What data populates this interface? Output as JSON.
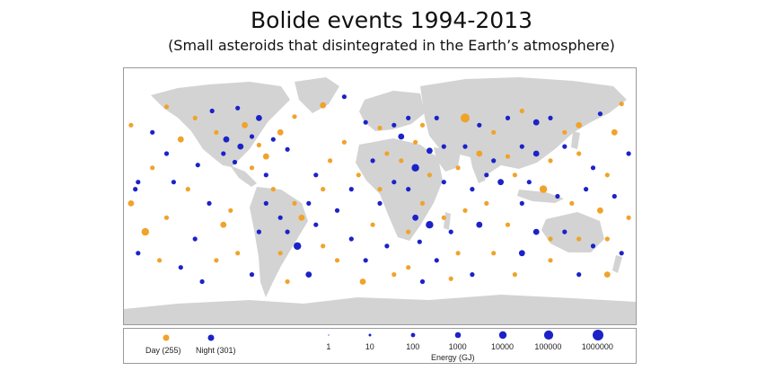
{
  "header": {
    "title": "Bolide events 1994-2013",
    "subtitle": "(Small asteroids that disintegrated in the Earth’s atmosphere)"
  },
  "colors": {
    "day": "#f0a32a",
    "night": "#1c22c8",
    "land": "#d3d3d3",
    "ocean": "#ffffff"
  },
  "legend": {
    "day_label": "Day (255)",
    "night_label": "Night (301)",
    "energy_levels": [
      "1",
      "10",
      "100",
      "1000",
      "10000",
      "100000",
      "1000000"
    ],
    "energy_axis_label": "Energy (GJ)"
  },
  "map_data": {
    "type": "scatter-map",
    "x_range": [
      -180,
      180
    ],
    "y_range": [
      -90,
      90
    ],
    "counts": {
      "day": 255,
      "night": 301
    },
    "events": [
      {
        "lon": -150,
        "lat": 63,
        "e": 2,
        "t": "d"
      },
      {
        "lon": -118,
        "lat": 60,
        "e": 2,
        "t": "n"
      },
      {
        "lon": -100,
        "lat": 62,
        "e": 2,
        "t": "n"
      },
      {
        "lon": -85,
        "lat": 55,
        "e": 3,
        "t": "n"
      },
      {
        "lon": -60,
        "lat": 56,
        "e": 2,
        "t": "d"
      },
      {
        "lon": -40,
        "lat": 64,
        "e": 3,
        "t": "d"
      },
      {
        "lon": -25,
        "lat": 70,
        "e": 2,
        "t": "n"
      },
      {
        "lon": -115,
        "lat": 45,
        "e": 2,
        "t": "d"
      },
      {
        "lon": -108,
        "lat": 40,
        "e": 3,
        "t": "n"
      },
      {
        "lon": -98,
        "lat": 35,
        "e": 3,
        "t": "n"
      },
      {
        "lon": -90,
        "lat": 42,
        "e": 2,
        "t": "n"
      },
      {
        "lon": -85,
        "lat": 36,
        "e": 2,
        "t": "d"
      },
      {
        "lon": -80,
        "lat": 28,
        "e": 3,
        "t": "d"
      },
      {
        "lon": -75,
        "lat": 40,
        "e": 2,
        "t": "n"
      },
      {
        "lon": -70,
        "lat": 45,
        "e": 3,
        "t": "d"
      },
      {
        "lon": -65,
        "lat": 33,
        "e": 2,
        "t": "n"
      },
      {
        "lon": -102,
        "lat": 24,
        "e": 2,
        "t": "n"
      },
      {
        "lon": -90,
        "lat": 20,
        "e": 2,
        "t": "d"
      },
      {
        "lon": -80,
        "lat": 15,
        "e": 2,
        "t": "n"
      },
      {
        "lon": -140,
        "lat": 40,
        "e": 3,
        "t": "d"
      },
      {
        "lon": -150,
        "lat": 30,
        "e": 2,
        "t": "n"
      },
      {
        "lon": -160,
        "lat": 20,
        "e": 2,
        "t": "d"
      },
      {
        "lon": -170,
        "lat": 10,
        "e": 2,
        "t": "n"
      },
      {
        "lon": -128,
        "lat": 22,
        "e": 2,
        "t": "n"
      },
      {
        "lon": -135,
        "lat": 5,
        "e": 2,
        "t": "d"
      },
      {
        "lon": -120,
        "lat": -5,
        "e": 2,
        "t": "n"
      },
      {
        "lon": -110,
        "lat": -20,
        "e": 3,
        "t": "d"
      },
      {
        "lon": -130,
        "lat": -30,
        "e": 2,
        "t": "n"
      },
      {
        "lon": -150,
        "lat": -15,
        "e": 2,
        "t": "d"
      },
      {
        "lon": -165,
        "lat": -25,
        "e": 4,
        "t": "d"
      },
      {
        "lon": -175,
        "lat": -5,
        "e": 3,
        "t": "d"
      },
      {
        "lon": -172,
        "lat": 5,
        "e": 2,
        "t": "n"
      },
      {
        "lon": -100,
        "lat": -40,
        "e": 2,
        "t": "d"
      },
      {
        "lon": -140,
        "lat": -50,
        "e": 2,
        "t": "n"
      },
      {
        "lon": -115,
        "lat": -45,
        "e": 2,
        "t": "d"
      },
      {
        "lon": -90,
        "lat": -55,
        "e": 2,
        "t": "n"
      },
      {
        "lon": -60,
        "lat": -5,
        "e": 2,
        "t": "d"
      },
      {
        "lon": -55,
        "lat": -15,
        "e": 3,
        "t": "d"
      },
      {
        "lon": -45,
        "lat": -20,
        "e": 2,
        "t": "n"
      },
      {
        "lon": -65,
        "lat": -25,
        "e": 2,
        "t": "n"
      },
      {
        "lon": -58,
        "lat": -35,
        "e": 4,
        "t": "n"
      },
      {
        "lon": -70,
        "lat": -40,
        "e": 2,
        "t": "d"
      },
      {
        "lon": -50,
        "lat": -5,
        "e": 2,
        "t": "n"
      },
      {
        "lon": -40,
        "lat": 5,
        "e": 2,
        "t": "d"
      },
      {
        "lon": -30,
        "lat": -10,
        "e": 2,
        "t": "n"
      },
      {
        "lon": -35,
        "lat": 25,
        "e": 2,
        "t": "d"
      },
      {
        "lon": -45,
        "lat": 15,
        "e": 2,
        "t": "n"
      },
      {
        "lon": -25,
        "lat": 38,
        "e": 2,
        "t": "d"
      },
      {
        "lon": -20,
        "lat": -30,
        "e": 2,
        "t": "n"
      },
      {
        "lon": -30,
        "lat": -45,
        "e": 2,
        "t": "d"
      },
      {
        "lon": -50,
        "lat": -55,
        "e": 3,
        "t": "n"
      },
      {
        "lon": -65,
        "lat": -60,
        "e": 2,
        "t": "d"
      },
      {
        "lon": -80,
        "lat": -5,
        "e": 2,
        "t": "n"
      },
      {
        "lon": -75,
        "lat": 5,
        "e": 2,
        "t": "d"
      },
      {
        "lon": -10,
        "lat": 52,
        "e": 2,
        "t": "n"
      },
      {
        "lon": 0,
        "lat": 48,
        "e": 2,
        "t": "d"
      },
      {
        "lon": 10,
        "lat": 50,
        "e": 2,
        "t": "n"
      },
      {
        "lon": 20,
        "lat": 55,
        "e": 2,
        "t": "n"
      },
      {
        "lon": 30,
        "lat": 50,
        "e": 2,
        "t": "d"
      },
      {
        "lon": 40,
        "lat": 55,
        "e": 2,
        "t": "n"
      },
      {
        "lon": 15,
        "lat": 42,
        "e": 3,
        "t": "n"
      },
      {
        "lon": 25,
        "lat": 38,
        "e": 2,
        "t": "d"
      },
      {
        "lon": 35,
        "lat": 32,
        "e": 3,
        "t": "n"
      },
      {
        "lon": 45,
        "lat": 35,
        "e": 2,
        "t": "n"
      },
      {
        "lon": 5,
        "lat": 30,
        "e": 2,
        "t": "d"
      },
      {
        "lon": -5,
        "lat": 25,
        "e": 2,
        "t": "n"
      },
      {
        "lon": 15,
        "lat": 25,
        "e": 2,
        "t": "d"
      },
      {
        "lon": 25,
        "lat": 20,
        "e": 4,
        "t": "n"
      },
      {
        "lon": 35,
        "lat": 15,
        "e": 2,
        "t": "d"
      },
      {
        "lon": 10,
        "lat": 10,
        "e": 2,
        "t": "n"
      },
      {
        "lon": 0,
        "lat": 5,
        "e": 2,
        "t": "d"
      },
      {
        "lon": 20,
        "lat": 5,
        "e": 2,
        "t": "n"
      },
      {
        "lon": 30,
        "lat": -5,
        "e": 2,
        "t": "d"
      },
      {
        "lon": 25,
        "lat": -15,
        "e": 3,
        "t": "n"
      },
      {
        "lon": 35,
        "lat": -20,
        "e": 4,
        "t": "n"
      },
      {
        "lon": 20,
        "lat": -25,
        "e": 2,
        "t": "d"
      },
      {
        "lon": 28,
        "lat": -32,
        "e": 2,
        "t": "n"
      },
      {
        "lon": 45,
        "lat": -15,
        "e": 2,
        "t": "d"
      },
      {
        "lon": 50,
        "lat": -25,
        "e": 2,
        "t": "n"
      },
      {
        "lon": 60,
        "lat": -10,
        "e": 2,
        "t": "d"
      },
      {
        "lon": 70,
        "lat": -20,
        "e": 3,
        "t": "n"
      },
      {
        "lon": 55,
        "lat": -40,
        "e": 2,
        "t": "d"
      },
      {
        "lon": 40,
        "lat": -45,
        "e": 2,
        "t": "n"
      },
      {
        "lon": 20,
        "lat": -50,
        "e": 2,
        "t": "d"
      },
      {
        "lon": 5,
        "lat": -35,
        "e": 2,
        "t": "n"
      },
      {
        "lon": -5,
        "lat": -20,
        "e": 2,
        "t": "d"
      },
      {
        "lon": 0,
        "lat": -5,
        "e": 2,
        "t": "n"
      },
      {
        "lon": -15,
        "lat": 15,
        "e": 2,
        "t": "d"
      },
      {
        "lon": -20,
        "lat": 5,
        "e": 2,
        "t": "n"
      },
      {
        "lon": 60,
        "lat": 55,
        "e": 5,
        "t": "d"
      },
      {
        "lon": 70,
        "lat": 50,
        "e": 2,
        "t": "n"
      },
      {
        "lon": 80,
        "lat": 45,
        "e": 2,
        "t": "d"
      },
      {
        "lon": 90,
        "lat": 55,
        "e": 2,
        "t": "n"
      },
      {
        "lon": 100,
        "lat": 60,
        "e": 2,
        "t": "d"
      },
      {
        "lon": 110,
        "lat": 52,
        "e": 3,
        "t": "n"
      },
      {
        "lon": 120,
        "lat": 55,
        "e": 2,
        "t": "n"
      },
      {
        "lon": 130,
        "lat": 45,
        "e": 2,
        "t": "d"
      },
      {
        "lon": 140,
        "lat": 50,
        "e": 3,
        "t": "d"
      },
      {
        "lon": 155,
        "lat": 58,
        "e": 2,
        "t": "n"
      },
      {
        "lon": 170,
        "lat": 65,
        "e": 2,
        "t": "d"
      },
      {
        "lon": 165,
        "lat": 45,
        "e": 3,
        "t": "d"
      },
      {
        "lon": 175,
        "lat": 30,
        "e": 2,
        "t": "n"
      },
      {
        "lon": 60,
        "lat": 35,
        "e": 2,
        "t": "n"
      },
      {
        "lon": 70,
        "lat": 30,
        "e": 3,
        "t": "d"
      },
      {
        "lon": 80,
        "lat": 25,
        "e": 2,
        "t": "n"
      },
      {
        "lon": 90,
        "lat": 28,
        "e": 2,
        "t": "d"
      },
      {
        "lon": 100,
        "lat": 35,
        "e": 2,
        "t": "n"
      },
      {
        "lon": 110,
        "lat": 30,
        "e": 3,
        "t": "n"
      },
      {
        "lon": 120,
        "lat": 25,
        "e": 2,
        "t": "d"
      },
      {
        "lon": 130,
        "lat": 35,
        "e": 2,
        "t": "n"
      },
      {
        "lon": 140,
        "lat": 30,
        "e": 2,
        "t": "d"
      },
      {
        "lon": 75,
        "lat": 15,
        "e": 2,
        "t": "n"
      },
      {
        "lon": 85,
        "lat": 10,
        "e": 3,
        "t": "n"
      },
      {
        "lon": 95,
        "lat": 15,
        "e": 2,
        "t": "d"
      },
      {
        "lon": 105,
        "lat": 10,
        "e": 2,
        "t": "n"
      },
      {
        "lon": 115,
        "lat": 5,
        "e": 4,
        "t": "d"
      },
      {
        "lon": 125,
        "lat": 0,
        "e": 2,
        "t": "n"
      },
      {
        "lon": 135,
        "lat": -5,
        "e": 2,
        "t": "d"
      },
      {
        "lon": 145,
        "lat": 5,
        "e": 2,
        "t": "n"
      },
      {
        "lon": 155,
        "lat": -10,
        "e": 3,
        "t": "d"
      },
      {
        "lon": 165,
        "lat": 0,
        "e": 2,
        "t": "n"
      },
      {
        "lon": 175,
        "lat": -15,
        "e": 2,
        "t": "d"
      },
      {
        "lon": 100,
        "lat": -5,
        "e": 2,
        "t": "n"
      },
      {
        "lon": 90,
        "lat": -20,
        "e": 2,
        "t": "d"
      },
      {
        "lon": 110,
        "lat": -25,
        "e": 3,
        "t": "n"
      },
      {
        "lon": 120,
        "lat": -30,
        "e": 2,
        "t": "d"
      },
      {
        "lon": 130,
        "lat": -25,
        "e": 2,
        "t": "n"
      },
      {
        "lon": 140,
        "lat": -30,
        "e": 2,
        "t": "d"
      },
      {
        "lon": 150,
        "lat": -35,
        "e": 2,
        "t": "n"
      },
      {
        "lon": 160,
        "lat": -30,
        "e": 2,
        "t": "d"
      },
      {
        "lon": 170,
        "lat": -40,
        "e": 2,
        "t": "n"
      },
      {
        "lon": 120,
        "lat": -45,
        "e": 2,
        "t": "d"
      },
      {
        "lon": 100,
        "lat": -40,
        "e": 3,
        "t": "n"
      },
      {
        "lon": 80,
        "lat": -40,
        "e": 2,
        "t": "d"
      },
      {
        "lon": 140,
        "lat": -55,
        "e": 2,
        "t": "n"
      },
      {
        "lon": 160,
        "lat": -55,
        "e": 3,
        "t": "d"
      },
      {
        "lon": -160,
        "lat": 45,
        "e": 2,
        "t": "n"
      },
      {
        "lon": -130,
        "lat": 55,
        "e": 2,
        "t": "d"
      },
      {
        "lon": -95,
        "lat": 50,
        "e": 3,
        "t": "d"
      },
      {
        "lon": -110,
        "lat": 30,
        "e": 2,
        "t": "n"
      },
      {
        "lon": -70,
        "lat": -15,
        "e": 2,
        "t": "n"
      },
      {
        "lon": -40,
        "lat": -35,
        "e": 2,
        "t": "d"
      },
      {
        "lon": -10,
        "lat": -45,
        "e": 2,
        "t": "n"
      },
      {
        "lon": 10,
        "lat": -55,
        "e": 2,
        "t": "d"
      },
      {
        "lon": 65,
        "lat": -55,
        "e": 2,
        "t": "n"
      },
      {
        "lon": 95,
        "lat": -55,
        "e": 2,
        "t": "d"
      },
      {
        "lon": -170,
        "lat": -40,
        "e": 2,
        "t": "n"
      },
      {
        "lon": -155,
        "lat": -45,
        "e": 2,
        "t": "d"
      },
      {
        "lon": -125,
        "lat": -60,
        "e": 2,
        "t": "n"
      },
      {
        "lon": -175,
        "lat": 50,
        "e": 2,
        "t": "d"
      },
      {
        "lon": 45,
        "lat": 10,
        "e": 2,
        "t": "n"
      },
      {
        "lon": 55,
        "lat": 20,
        "e": 2,
        "t": "d"
      },
      {
        "lon": 65,
        "lat": 5,
        "e": 2,
        "t": "n"
      },
      {
        "lon": 75,
        "lat": -5,
        "e": 2,
        "t": "d"
      },
      {
        "lon": 150,
        "lat": 20,
        "e": 2,
        "t": "n"
      },
      {
        "lon": 160,
        "lat": 15,
        "e": 2,
        "t": "d"
      },
      {
        "lon": -145,
        "lat": 10,
        "e": 2,
        "t": "n"
      },
      {
        "lon": -105,
        "lat": -10,
        "e": 2,
        "t": "d"
      },
      {
        "lon": -85,
        "lat": -25,
        "e": 2,
        "t": "n"
      },
      {
        "lon": -12,
        "lat": -60,
        "e": 3,
        "t": "d"
      },
      {
        "lon": 30,
        "lat": -60,
        "e": 2,
        "t": "n"
      },
      {
        "lon": 50,
        "lat": -58,
        "e": 2,
        "t": "d"
      }
    ]
  }
}
